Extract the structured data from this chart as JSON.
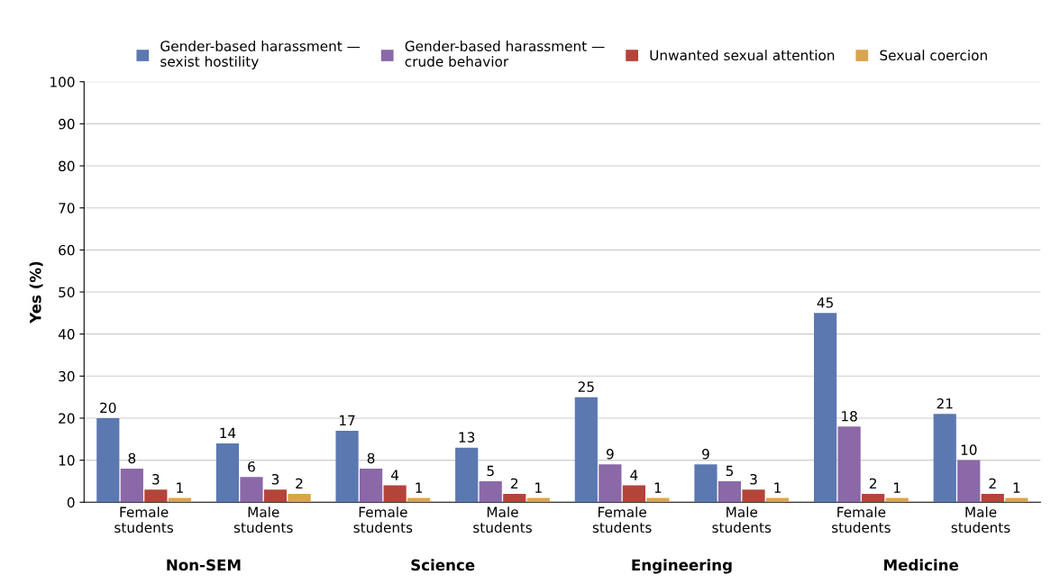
{
  "chart_data": {
    "type": "bar",
    "ylabel": "Yes (%)",
    "categories": [
      "Female students",
      "Male students",
      "Female students",
      "Male students",
      "Female students",
      "Male students",
      "Female students",
      "Male students"
    ],
    "series": [
      {
        "name": "Gender-based harassment — sexist hostility",
        "color": "#5b78b1",
        "values": [
          20,
          14,
          17,
          13,
          25,
          9,
          45,
          21
        ]
      },
      {
        "name": "Gender-based harassment — crude behavior",
        "color": "#8b68a8",
        "values": [
          8,
          6,
          8,
          5,
          9,
          5,
          18,
          10
        ]
      },
      {
        "name": "Unwanted sexual attention",
        "color": "#b3443a",
        "values": [
          3,
          3,
          4,
          2,
          4,
          3,
          2,
          2
        ]
      },
      {
        "name": "Sexual coercion",
        "color": "#d9a450",
        "values": [
          1,
          2,
          1,
          1,
          1,
          1,
          1,
          1
        ]
      }
    ],
    "annotations": [
      "Non-SEM",
      "Science",
      "Engineering",
      "Medicine"
    ],
    "ylim": [
      0,
      100
    ],
    "yticks": [
      0,
      10,
      20,
      30,
      40,
      50,
      60,
      70,
      80,
      90,
      100
    ],
    "grid": "y",
    "legend": "top",
    "data_labels": true
  }
}
